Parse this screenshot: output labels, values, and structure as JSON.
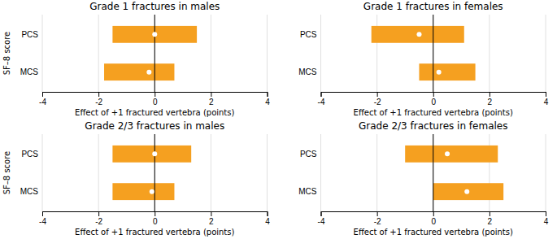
{
  "chart_data": [
    {
      "type": "bar",
      "orientation": "horizontal",
      "title": "Grade 1 fractures in males",
      "categories": [
        "PCS",
        "MCS"
      ],
      "series": [
        {
          "type": "bar",
          "color": "#F5A020",
          "low": [
            -1.5,
            -1.8
          ],
          "high": [
            1.5,
            0.7
          ]
        },
        {
          "type": "scatter",
          "marker": "circle",
          "color": "white",
          "values": [
            0.0,
            -0.2
          ]
        }
      ],
      "reference_lines": [
        {
          "x": 0,
          "color": "black"
        }
      ],
      "xlim": [
        -4,
        4
      ],
      "xticks": [
        -4,
        -2,
        0,
        2,
        4
      ],
      "xlabel": "Effect of +1 fractured vertebra (points)",
      "ylabel": "SF–8 score",
      "grid": true
    },
    {
      "type": "bar",
      "orientation": "horizontal",
      "title": "Grade 1 fractures in females",
      "categories": [
        "PCS",
        "MCS"
      ],
      "series": [
        {
          "type": "bar",
          "color": "#F5A020",
          "low": [
            -2.2,
            -0.5
          ],
          "high": [
            1.1,
            1.5
          ]
        },
        {
          "type": "scatter",
          "marker": "circle",
          "color": "white",
          "values": [
            -0.5,
            0.2
          ]
        }
      ],
      "reference_lines": [
        {
          "x": 0,
          "color": "black"
        }
      ],
      "xlim": [
        -4,
        4
      ],
      "xticks": [
        -4,
        -2,
        0,
        2,
        4
      ],
      "xlabel": "Effect of +1 fractured vertebra (points)",
      "grid": true
    },
    {
      "type": "bar",
      "orientation": "horizontal",
      "title": "Grade 2/3 fractures in males",
      "categories": [
        "PCS",
        "MCS"
      ],
      "series": [
        {
          "type": "bar",
          "color": "#F5A020",
          "low": [
            -1.5,
            -1.5
          ],
          "high": [
            1.3,
            0.7
          ]
        },
        {
          "type": "scatter",
          "marker": "circle",
          "color": "white",
          "values": [
            0.0,
            -0.1
          ]
        }
      ],
      "reference_lines": [
        {
          "x": 0,
          "color": "black"
        }
      ],
      "xlim": [
        -4,
        4
      ],
      "xticks": [
        -4,
        -2,
        0,
        2,
        4
      ],
      "xlabel": "Effect of +1 fractured vertebra (points)",
      "ylabel": "SF–8 score",
      "grid": true
    },
    {
      "type": "bar",
      "orientation": "horizontal",
      "title": "Grade 2/3 fractures in females",
      "categories": [
        "PCS",
        "MCS"
      ],
      "series": [
        {
          "type": "bar",
          "color": "#F5A020",
          "low": [
            -1.0,
            0.0
          ],
          "high": [
            2.3,
            2.5
          ]
        },
        {
          "type": "scatter",
          "marker": "circle",
          "color": "white",
          "values": [
            0.5,
            1.2
          ]
        }
      ],
      "reference_lines": [
        {
          "x": 0,
          "color": "black"
        }
      ],
      "xlim": [
        -4,
        4
      ],
      "xticks": [
        -4,
        -2,
        0,
        2,
        4
      ],
      "xlabel": "Effect of +1 fractured vertebra (points)",
      "grid": true
    }
  ]
}
